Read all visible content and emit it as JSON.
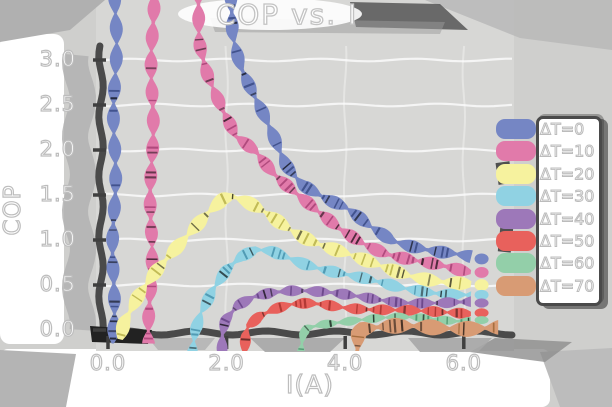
{
  "title": "COP vs. I",
  "chart_data": {
    "type": "line",
    "title": "COP vs. I",
    "xlabel": "I(A)",
    "ylabel": "COP",
    "xlim": [
      0,
      6.8
    ],
    "ylim": [
      0,
      3.2
    ],
    "grid": true,
    "legend_position": "right",
    "style": "sketchy-ribbon",
    "background": "#d7d7d5",
    "spine_color": "#4a4a4a",
    "xticks": [
      {
        "value": 0.0,
        "label": "0.0"
      },
      {
        "value": 2.0,
        "label": "2.0"
      },
      {
        "value": 4.0,
        "label": "4.0"
      },
      {
        "value": 6.0,
        "label": "6.0"
      }
    ],
    "yticks": [
      {
        "value": 0.0,
        "label": "0.0"
      },
      {
        "value": 0.5,
        "label": "0.5"
      },
      {
        "value": 1.0,
        "label": "1.0"
      },
      {
        "value": 1.5,
        "label": "1.5"
      },
      {
        "value": 2.0,
        "label": "2.0"
      },
      {
        "value": 2.5,
        "label": "2.5"
      },
      {
        "value": 3.0,
        "label": "3.0"
      }
    ],
    "series": [
      {
        "name": "ΔT=0",
        "color": "#7586c4",
        "hatch": "#31427c",
        "width": 13,
        "period": 30,
        "cap": [
          6.3,
          0.79
        ],
        "points": [
          [
            0.08,
            -0.15
          ],
          [
            0.1,
            1.0
          ],
          [
            0.13,
            3.9
          ],
          [
            2.02,
            3.9
          ],
          [
            2.1,
            3.3
          ],
          [
            2.25,
            2.95
          ],
          [
            2.45,
            2.62
          ],
          [
            2.7,
            2.25
          ],
          [
            3.0,
            1.85
          ],
          [
            3.3,
            1.62
          ],
          [
            3.7,
            1.45
          ],
          [
            4.0,
            1.35
          ],
          [
            4.4,
            1.15
          ],
          [
            4.8,
            1.0
          ],
          [
            5.2,
            0.93
          ],
          [
            5.6,
            0.87
          ],
          [
            6.0,
            0.82
          ],
          [
            6.12,
            0.8
          ]
        ]
      },
      {
        "name": "ΔT=10",
        "color": "#e17aaa",
        "hatch": "#a03a6e",
        "width": 13,
        "period": 28,
        "cap": [
          6.3,
          0.64
        ],
        "points": [
          [
            0.7,
            -0.15
          ],
          [
            0.73,
            1.2
          ],
          [
            0.76,
            3.9
          ],
          [
            1.48,
            3.9
          ],
          [
            1.56,
            3.2
          ],
          [
            1.7,
            2.8
          ],
          [
            1.9,
            2.45
          ],
          [
            2.15,
            2.15
          ],
          [
            2.5,
            2.0
          ],
          [
            2.8,
            1.75
          ],
          [
            3.1,
            1.55
          ],
          [
            3.5,
            1.32
          ],
          [
            3.9,
            1.13
          ],
          [
            4.3,
            0.98
          ],
          [
            4.7,
            0.85
          ],
          [
            5.1,
            0.77
          ],
          [
            5.5,
            0.72
          ],
          [
            5.9,
            0.67
          ],
          [
            6.12,
            0.65
          ]
        ]
      },
      {
        "name": "ΔT=20",
        "color": "#f6f29e",
        "hatch": "#b0a93f",
        "width": 14,
        "period": 32,
        "cap": [
          6.3,
          0.5
        ],
        "points": [
          [
            0.18,
            -0.1
          ],
          [
            0.25,
            0.08
          ],
          [
            0.5,
            0.35
          ],
          [
            0.8,
            0.62
          ],
          [
            1.1,
            0.88
          ],
          [
            1.4,
            1.12
          ],
          [
            1.7,
            1.32
          ],
          [
            1.95,
            1.45
          ],
          [
            2.1,
            1.47
          ],
          [
            2.3,
            1.42
          ],
          [
            2.6,
            1.32
          ],
          [
            2.9,
            1.2
          ],
          [
            3.2,
            1.08
          ],
          [
            3.5,
            0.98
          ],
          [
            3.9,
            0.87
          ],
          [
            4.3,
            0.77
          ],
          [
            4.7,
            0.68
          ],
          [
            5.1,
            0.61
          ],
          [
            5.5,
            0.56
          ],
          [
            5.9,
            0.52
          ],
          [
            6.12,
            0.5
          ]
        ]
      },
      {
        "name": "ΔT=30",
        "color": "#90d2e3",
        "hatch": "#3d89a5",
        "width": 12,
        "period": 30,
        "cap": [
          6.3,
          0.39
        ],
        "points": [
          [
            1.44,
            -0.25
          ],
          [
            1.47,
            0.0
          ],
          [
            1.55,
            0.2
          ],
          [
            1.75,
            0.45
          ],
          [
            2.0,
            0.66
          ],
          [
            2.25,
            0.8
          ],
          [
            2.5,
            0.88
          ],
          [
            2.75,
            0.87
          ],
          [
            3.0,
            0.82
          ],
          [
            3.3,
            0.75
          ],
          [
            3.7,
            0.67
          ],
          [
            4.1,
            0.6
          ],
          [
            4.5,
            0.53
          ],
          [
            4.9,
            0.47
          ],
          [
            5.3,
            0.44
          ],
          [
            5.7,
            0.41
          ],
          [
            6.12,
            0.39
          ]
        ]
      },
      {
        "name": "ΔT=40",
        "color": "#9d78b9",
        "hatch": "#5e3a7e",
        "width": 11,
        "period": 26,
        "cap": [
          6.3,
          0.3
        ],
        "points": [
          [
            1.92,
            -0.3
          ],
          [
            1.95,
            -0.05
          ],
          [
            2.0,
            0.1
          ],
          [
            2.2,
            0.27
          ],
          [
            2.45,
            0.37
          ],
          [
            2.75,
            0.43
          ],
          [
            3.05,
            0.45
          ],
          [
            3.35,
            0.44
          ],
          [
            3.7,
            0.41
          ],
          [
            4.1,
            0.37
          ],
          [
            4.5,
            0.34
          ],
          [
            4.9,
            0.32
          ],
          [
            5.3,
            0.31
          ],
          [
            5.8,
            0.3
          ],
          [
            6.12,
            0.3
          ]
        ]
      },
      {
        "name": "ΔT=50",
        "color": "#e8615c",
        "hatch": "#a02c28",
        "width": 11,
        "period": 26,
        "cap": [
          6.3,
          0.19
        ],
        "points": [
          [
            2.27,
            -0.35
          ],
          [
            2.3,
            -0.05
          ],
          [
            2.35,
            0.05
          ],
          [
            2.55,
            0.15
          ],
          [
            2.8,
            0.22
          ],
          [
            3.1,
            0.27
          ],
          [
            3.4,
            0.29
          ],
          [
            3.7,
            0.28
          ],
          [
            4.0,
            0.26
          ],
          [
            4.4,
            0.24
          ],
          [
            4.8,
            0.22
          ],
          [
            5.2,
            0.2
          ],
          [
            5.6,
            0.19
          ],
          [
            6.12,
            0.19
          ]
        ]
      },
      {
        "name": "ΔT=60",
        "color": "#93cfa9",
        "hatch": "#3f8a63",
        "width": 9,
        "period": 24,
        "cap": [
          6.3,
          0.11
        ],
        "points": [
          [
            3.26,
            -0.35
          ],
          [
            3.3,
            -0.05
          ],
          [
            3.35,
            0.02
          ],
          [
            3.6,
            0.07
          ],
          [
            3.9,
            0.1
          ],
          [
            4.2,
            0.12
          ],
          [
            4.6,
            0.13
          ],
          [
            5.0,
            0.13
          ],
          [
            5.4,
            0.12
          ],
          [
            5.8,
            0.11
          ],
          [
            6.12,
            0.11
          ]
        ]
      },
      {
        "name": "ΔT=70",
        "color": "#d89b74",
        "hatch": "#96602f",
        "width": 16,
        "period": 36,
        "cap": null,
        "points": [
          [
            4.18,
            -0.3
          ],
          [
            4.22,
            -0.05
          ],
          [
            4.3,
            0.0
          ],
          [
            4.6,
            0.02
          ],
          [
            5.0,
            0.04
          ],
          [
            5.4,
            0.04
          ],
          [
            5.8,
            0.03
          ],
          [
            6.2,
            0.02
          ],
          [
            6.58,
            0.02
          ]
        ]
      }
    ]
  }
}
